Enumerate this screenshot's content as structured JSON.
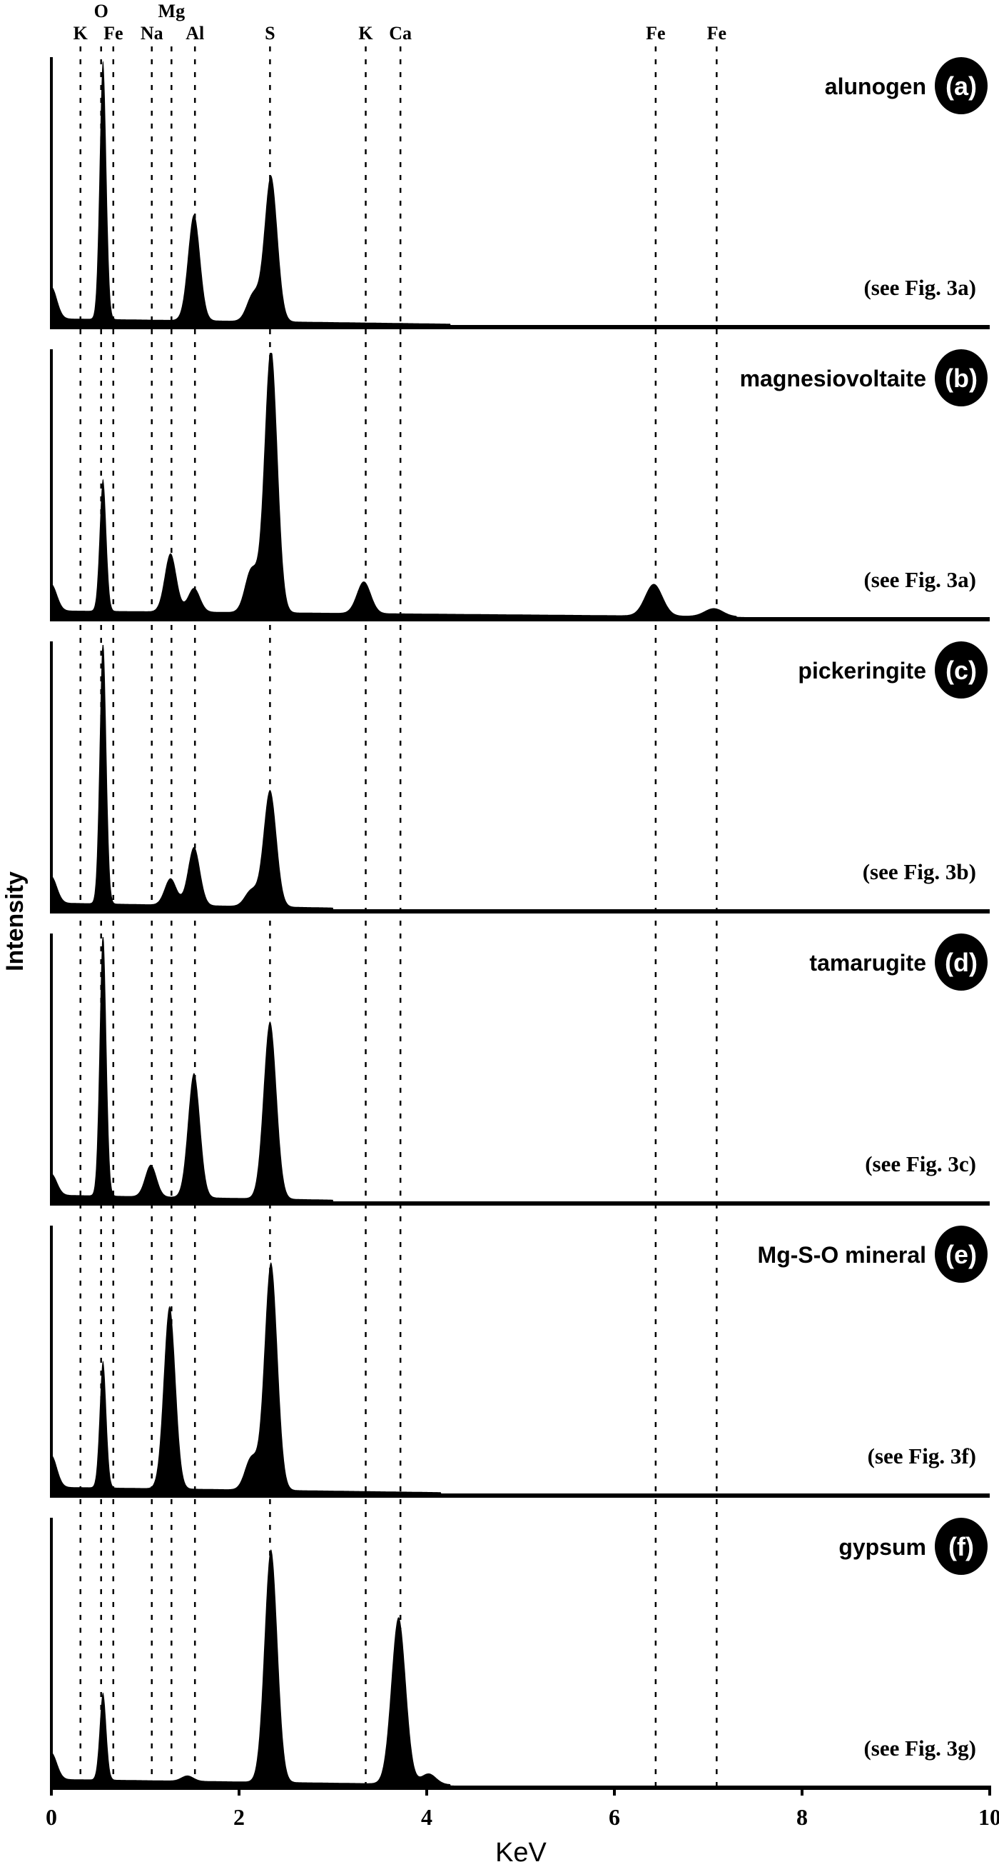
{
  "chart_data": {
    "type": "area",
    "xlabel": "KeV",
    "ylabel": "Intensity",
    "xlim": [
      0,
      10
    ],
    "xticks": [
      "0",
      "2",
      "4",
      "6",
      "8",
      "10"
    ],
    "element_lines": [
      {
        "label": "K",
        "keV": 0.31
      },
      {
        "label": "O",
        "keV": 0.53
      },
      {
        "label": "Fe",
        "keV": 0.66
      },
      {
        "label": "Na",
        "keV": 1.07
      },
      {
        "label": "Mg",
        "keV": 1.28
      },
      {
        "label": "Al",
        "keV": 1.53
      },
      {
        "label": "S",
        "keV": 2.33
      },
      {
        "label": "K",
        "keV": 3.35
      },
      {
        "label": "Ca",
        "keV": 3.72
      },
      {
        "label": "Fe",
        "keV": 6.44
      },
      {
        "label": "Fe",
        "keV": 7.09
      }
    ],
    "series": [
      {
        "name": "alunogen",
        "letter": "(a)",
        "ref": "(see Fig. 3a)",
        "bg_end": 4.25,
        "peaks": [
          {
            "keV": 0.0,
            "rel": 0.12
          },
          {
            "keV": 0.55,
            "rel": 0.98
          },
          {
            "keV": 1.52,
            "rel": 0.4
          },
          {
            "keV": 2.15,
            "rel": 0.1
          },
          {
            "keV": 2.34,
            "rel": 0.55
          }
        ]
      },
      {
        "name": "magnesiovoltaite",
        "letter": "(b)",
        "ref": "(see Fig. 3a)",
        "bg_end": 7.3,
        "peaks": [
          {
            "keV": 0.0,
            "rel": 0.1
          },
          {
            "keV": 0.55,
            "rel": 0.5
          },
          {
            "keV": 1.27,
            "rel": 0.22
          },
          {
            "keV": 1.52,
            "rel": 0.09
          },
          {
            "keV": 2.13,
            "rel": 0.16
          },
          {
            "keV": 2.34,
            "rel": 1.0
          },
          {
            "keV": 3.33,
            "rel": 0.12
          },
          {
            "keV": 6.42,
            "rel": 0.12
          },
          {
            "keV": 7.06,
            "rel": 0.03
          }
        ]
      },
      {
        "name": "pickeringite",
        "letter": "(c)",
        "ref": "(see Fig. 3b)",
        "bg_end": 3.0,
        "peaks": [
          {
            "keV": 0.0,
            "rel": 0.1
          },
          {
            "keV": 0.55,
            "rel": 1.0
          },
          {
            "keV": 1.27,
            "rel": 0.1
          },
          {
            "keV": 1.52,
            "rel": 0.22
          },
          {
            "keV": 2.13,
            "rel": 0.06
          },
          {
            "keV": 2.33,
            "rel": 0.44
          }
        ]
      },
      {
        "name": "tamarugite",
        "letter": "(d)",
        "ref": "(see Fig. 3c)",
        "bg_end": 3.0,
        "peaks": [
          {
            "keV": 0.0,
            "rel": 0.08
          },
          {
            "keV": 0.55,
            "rel": 1.0
          },
          {
            "keV": 1.06,
            "rel": 0.12
          },
          {
            "keV": 1.52,
            "rel": 0.47
          },
          {
            "keV": 2.33,
            "rel": 0.67
          }
        ]
      },
      {
        "name": "Mg-S-O mineral",
        "letter": "(e)",
        "ref": "(see Fig. 3f)",
        "bg_end": 4.15,
        "peaks": [
          {
            "keV": 0.0,
            "rel": 0.12
          },
          {
            "keV": 0.55,
            "rel": 0.48
          },
          {
            "keV": 1.26,
            "rel": 0.69
          },
          {
            "keV": 2.13,
            "rel": 0.12
          },
          {
            "keV": 2.34,
            "rel": 0.86
          }
        ]
      },
      {
        "name": "gypsum",
        "letter": "(f)",
        "ref": "(see Fig. 3g)",
        "bg_end": 4.25,
        "peaks": [
          {
            "keV": 0.0,
            "rel": 0.1
          },
          {
            "keV": 0.55,
            "rel": 0.33
          },
          {
            "keV": 1.45,
            "rel": 0.02
          },
          {
            "keV": 2.34,
            "rel": 0.88
          },
          {
            "keV": 3.7,
            "rel": 0.63
          },
          {
            "keV": 4.02,
            "rel": 0.04
          }
        ]
      }
    ]
  }
}
